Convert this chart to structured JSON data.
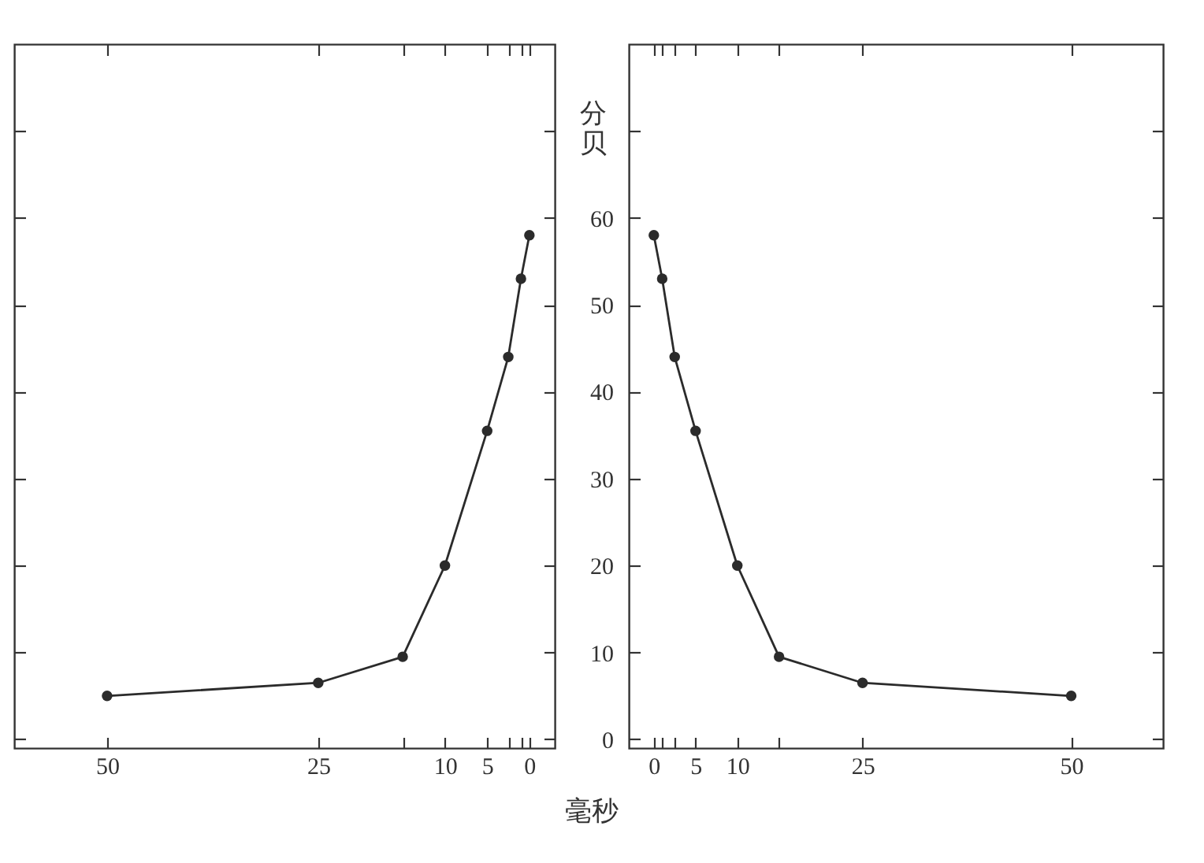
{
  "chart_data": [
    {
      "type": "line",
      "x": [
        0,
        1,
        2.5,
        5,
        10,
        15,
        25,
        50
      ],
      "values": [
        58,
        53,
        44,
        35.5,
        20,
        9.5,
        6.5,
        5
      ],
      "color": "#2b2b2b",
      "marker": "circle",
      "line_style": "solid",
      "xlim": [
        61,
        -3
      ],
      "xticks": [
        0,
        {
          "value": 1,
          "label": null
        },
        {
          "value": 2.5,
          "label": null
        },
        5,
        10,
        {
          "value": 15,
          "label": null
        },
        25,
        50
      ],
      "ylim": [
        -1,
        80
      ],
      "yticks": [
        0,
        10,
        20,
        30,
        40,
        50,
        60,
        {
          "value": 70,
          "label": null
        }
      ],
      "grid": false,
      "tick_labels": "x"
    },
    {
      "type": "line",
      "x": [
        0,
        1,
        2.5,
        5,
        10,
        15,
        25,
        50
      ],
      "values": [
        58,
        53,
        44,
        35.5,
        20,
        9.5,
        6.5,
        5
      ],
      "color": "#2b2b2b",
      "marker": "circle",
      "line_style": "solid",
      "xlim": [
        -3,
        61
      ],
      "xticks": [
        0,
        {
          "value": 1,
          "label": null
        },
        {
          "value": 2.5,
          "label": null
        },
        5,
        10,
        {
          "value": 15,
          "label": null
        },
        25,
        50
      ],
      "ylim": [
        -1,
        80
      ],
      "yticks": [
        0,
        10,
        20,
        30,
        40,
        50,
        60,
        {
          "value": 70,
          "label": null
        }
      ],
      "grid": false,
      "xlabel": "毫秒",
      "ylabel": "分贝"
    }
  ]
}
